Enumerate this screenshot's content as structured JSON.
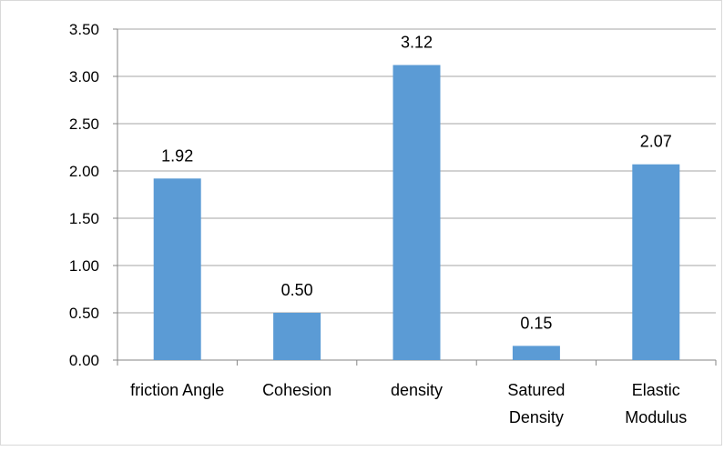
{
  "chart_data": {
    "type": "bar",
    "categories": [
      [
        "friction Angle"
      ],
      [
        "Cohesion"
      ],
      [
        "density"
      ],
      [
        "Satured",
        "Density"
      ],
      [
        "Elastic",
        "Modulus"
      ]
    ],
    "values": [
      1.92,
      0.5,
      3.12,
      0.15,
      2.07
    ],
    "data_labels": [
      "1.92",
      "0.50",
      "3.12",
      "0.15",
      "2.07"
    ],
    "y_ticks": [
      "0.00",
      "0.50",
      "1.00",
      "1.50",
      "2.00",
      "2.50",
      "3.00",
      "3.50"
    ],
    "ylim": [
      0,
      3.5
    ],
    "grid": true,
    "legend": "none",
    "title": "",
    "xlabel": "",
    "ylabel": "",
    "bar_color": "#5b9bd5",
    "grid_color": "#a6a6a6"
  }
}
